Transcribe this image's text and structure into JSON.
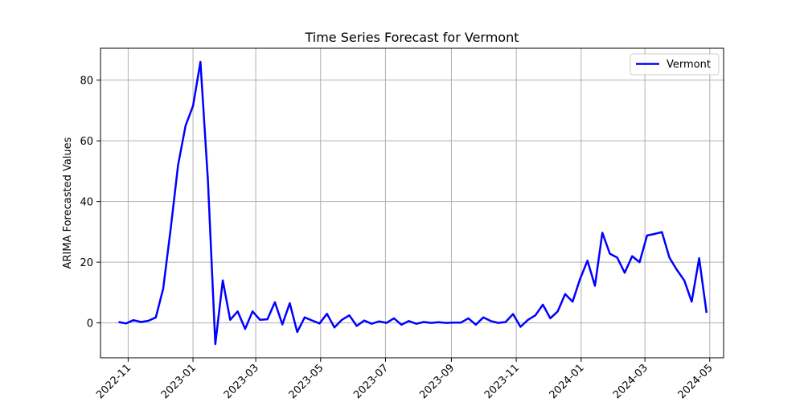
{
  "chart_data": {
    "type": "line",
    "title": "Time Series Forecast for Vermont",
    "xlabel": "",
    "ylabel": "ARIMA Forecasted Values",
    "xlim": [
      "2022-10-06",
      "2024-05-14"
    ],
    "ylim": [
      -11.5,
      90.5
    ],
    "x_tick_labels": [
      "2022-11",
      "2023-01",
      "2023-03",
      "2023-05",
      "2023-07",
      "2023-09",
      "2023-11",
      "2024-01",
      "2024-03",
      "2024-05"
    ],
    "x_tick_dates": [
      "2022-11-01",
      "2023-01-01",
      "2023-03-01",
      "2023-05-01",
      "2023-07-01",
      "2023-09-01",
      "2023-11-01",
      "2024-01-01",
      "2024-03-01",
      "2024-05-01"
    ],
    "y_ticks": [
      0,
      20,
      40,
      60,
      80
    ],
    "grid": true,
    "legend_position": "upper right",
    "colors": {
      "line": "#0000ff",
      "grid": "#b0b0b0",
      "axis": "#000000"
    },
    "series": [
      {
        "name": "Vermont",
        "x": [
          "2022-10-23",
          "2022-10-30",
          "2022-11-06",
          "2022-11-13",
          "2022-11-20",
          "2022-11-27",
          "2022-12-04",
          "2022-12-11",
          "2022-12-18",
          "2022-12-25",
          "2023-01-01",
          "2023-01-08",
          "2023-01-15",
          "2023-01-22",
          "2023-01-29",
          "2023-02-05",
          "2023-02-12",
          "2023-02-19",
          "2023-02-26",
          "2023-03-05",
          "2023-03-12",
          "2023-03-19",
          "2023-03-26",
          "2023-04-02",
          "2023-04-09",
          "2023-04-16",
          "2023-04-23",
          "2023-04-30",
          "2023-05-07",
          "2023-05-14",
          "2023-05-21",
          "2023-05-28",
          "2023-06-04",
          "2023-06-11",
          "2023-06-18",
          "2023-06-25",
          "2023-07-02",
          "2023-07-09",
          "2023-07-16",
          "2023-07-23",
          "2023-07-30",
          "2023-08-06",
          "2023-08-13",
          "2023-08-20",
          "2023-08-27",
          "2023-09-03",
          "2023-09-10",
          "2023-09-17",
          "2023-09-24",
          "2023-10-01",
          "2023-10-08",
          "2023-10-15",
          "2023-10-22",
          "2023-10-29",
          "2023-11-05",
          "2023-11-12",
          "2023-11-19",
          "2023-11-26",
          "2023-12-03",
          "2023-12-10",
          "2023-12-17",
          "2023-12-24",
          "2023-12-31",
          "2024-01-07",
          "2024-01-14",
          "2024-01-21",
          "2024-01-28",
          "2024-02-04",
          "2024-02-11",
          "2024-02-18",
          "2024-02-25",
          "2024-03-03",
          "2024-03-10",
          "2024-03-17",
          "2024-03-24",
          "2024-03-31",
          "2024-04-07",
          "2024-04-14",
          "2024-04-21",
          "2024-04-28"
        ],
        "values": [
          0.3,
          -0.2,
          0.9,
          0.3,
          0.7,
          1.8,
          11.3,
          31.0,
          52.0,
          65.0,
          71.5,
          86.0,
          47.0,
          -7.0,
          14.0,
          1.0,
          3.8,
          -2.0,
          3.8,
          1.0,
          1.2,
          6.8,
          -0.5,
          6.5,
          -3.0,
          1.8,
          0.8,
          -0.2,
          3.0,
          -1.5,
          1.0,
          2.5,
          -1.0,
          0.8,
          -0.3,
          0.5,
          0.0,
          1.5,
          -0.6,
          0.6,
          -0.3,
          0.3,
          0.0,
          0.2,
          0.0,
          0.1,
          0.1,
          1.5,
          -0.6,
          1.8,
          0.6,
          0.0,
          0.3,
          2.9,
          -1.3,
          1.0,
          2.5,
          6.0,
          1.5,
          3.8,
          9.5,
          7.0,
          14.5,
          20.5,
          12.2,
          29.7,
          22.8,
          21.5,
          16.5,
          22.0,
          20.0,
          28.8,
          29.3,
          29.9,
          21.5,
          17.5,
          14.0,
          7.0,
          21.3,
          3.3
        ]
      }
    ]
  }
}
